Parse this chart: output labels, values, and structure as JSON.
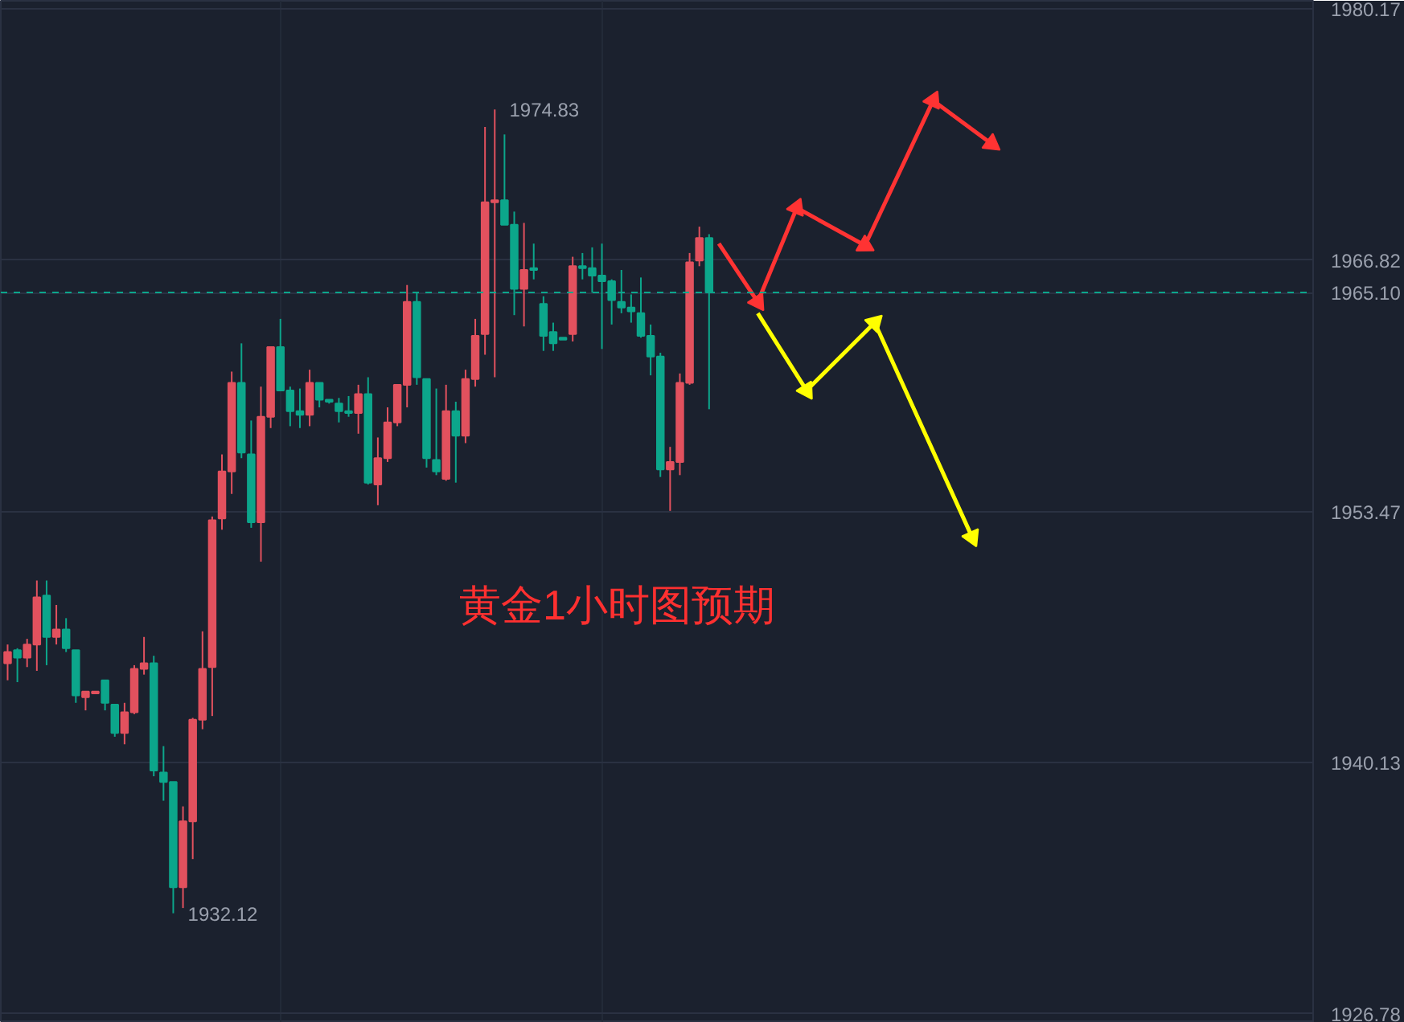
{
  "chart_data": {
    "type": "candlestick",
    "categories": [
      null,
      null,
      null,
      null,
      null,
      null,
      null,
      null,
      null,
      null,
      null,
      null,
      null,
      null,
      null,
      null,
      null,
      null,
      null,
      null,
      null,
      null,
      null,
      null,
      null,
      null,
      null,
      null,
      null,
      null,
      null,
      null,
      null,
      null,
      null,
      null,
      null,
      null,
      null,
      null,
      null,
      null,
      null,
      null,
      null,
      null,
      null,
      null,
      null,
      null,
      null,
      null,
      null,
      null,
      null,
      null,
      null,
      null,
      null,
      null,
      null,
      null,
      null,
      null,
      null,
      null,
      null,
      null,
      null,
      null,
      null,
      null,
      null,
      null,
      null,
      null,
      null,
      null,
      null,
      null,
      null,
      null,
      null,
      null,
      null,
      null,
      null,
      null,
      null,
      null,
      null,
      null,
      null,
      null,
      null,
      null,
      null,
      null,
      null,
      null,
      null,
      null,
      null,
      null,
      null,
      null,
      null,
      null,
      null,
      null,
      null,
      null,
      null,
      null,
      null,
      null,
      null,
      null,
      null,
      null,
      null,
      null,
      null,
      null,
      null,
      null,
      null,
      null,
      null,
      null,
      null,
      null,
      null,
      null,
      null
    ],
    "ohlc": [
      [
        1945.4,
        1946.4,
        1944.5,
        1946.0
      ],
      [
        1946.1,
        1946.2,
        1944.4,
        1945.7
      ],
      [
        1945.7,
        1946.7,
        1945.2,
        1946.4
      ],
      [
        1946.4,
        1949.8,
        1945.0,
        1948.9
      ],
      [
        1949.0,
        1949.8,
        1945.3,
        1946.8
      ],
      [
        1946.8,
        1948.5,
        1946.4,
        1947.2
      ],
      [
        1947.2,
        1947.8,
        1946.0,
        1946.2
      ],
      [
        1946.1,
        1946.1,
        1943.3,
        1943.7
      ],
      [
        1943.6,
        1943.9,
        1942.9,
        1943.9
      ],
      [
        1943.8,
        1943.9,
        1943.8,
        1943.9
      ],
      [
        1944.5,
        1944.5,
        1942.9,
        1943.3
      ],
      [
        1943.2,
        1943.2,
        1941.5,
        1941.7
      ],
      [
        1941.7,
        1943.3,
        1941.1,
        1942.8
      ],
      [
        1942.8,
        1945.3,
        1942.7,
        1945.1
      ],
      [
        1945.1,
        1946.8,
        1944.8,
        1945.4
      ],
      [
        1945.4,
        1945.8,
        1939.4,
        1939.7
      ],
      [
        1939.6,
        1941.0,
        1938.1,
        1939.1
      ],
      [
        1939.1,
        1939.1,
        1932.12,
        1933.5
      ],
      [
        1933.5,
        1937.8,
        1932.4,
        1937.0
      ],
      [
        1937.0,
        1942.5,
        1935.0,
        1942.4
      ],
      [
        1942.4,
        1947.1,
        1941.9,
        1945.1
      ],
      [
        1945.2,
        1953.2,
        1942.6,
        1953.0
      ],
      [
        1953.1,
        1956.5,
        1952.5,
        1955.6
      ],
      [
        1955.6,
        1960.9,
        1954.4,
        1960.3
      ],
      [
        1960.3,
        1962.4,
        1956.3,
        1956.6
      ],
      [
        1956.5,
        1958.3,
        1952.6,
        1952.9
      ],
      [
        1952.9,
        1960.1,
        1950.8,
        1958.5
      ],
      [
        1958.5,
        1962.2,
        1957.9,
        1962.2
      ],
      [
        1962.2,
        1963.7,
        1959.9,
        1959.9
      ],
      [
        1959.9,
        1960.1,
        1958.0,
        1958.8
      ],
      [
        1958.8,
        1960.0,
        1957.9,
        1958.6
      ],
      [
        1958.6,
        1961.0,
        1958.0,
        1960.3
      ],
      [
        1960.3,
        1960.3,
        1959.0,
        1959.4
      ],
      [
        1959.4,
        1959.4,
        1959.2,
        1959.3
      ],
      [
        1959.2,
        1959.5,
        1958.2,
        1958.8
      ],
      [
        1958.8,
        1959.6,
        1958.5,
        1958.7
      ],
      [
        1958.7,
        1960.2,
        1957.6,
        1959.7
      ],
      [
        1959.7,
        1960.6,
        1954.9,
        1955.0
      ],
      [
        1954.9,
        1957.4,
        1953.8,
        1956.3
      ],
      [
        1956.3,
        1959.0,
        1956.1,
        1958.2
      ],
      [
        1958.2,
        1960.2,
        1958.0,
        1960.2
      ],
      [
        1960.2,
        1965.5,
        1959.0,
        1964.6
      ],
      [
        1964.6,
        1965.1,
        1960.2,
        1960.6
      ],
      [
        1960.5,
        1960.5,
        1955.8,
        1956.3
      ],
      [
        1956.2,
        1960.0,
        1955.4,
        1955.6
      ],
      [
        1955.2,
        1960.2,
        1955.1,
        1958.8
      ],
      [
        1958.8,
        1959.3,
        1955.0,
        1957.5
      ],
      [
        1957.5,
        1961.0,
        1957.1,
        1960.5
      ],
      [
        1960.5,
        1963.7,
        1960.1,
        1962.8
      ],
      [
        1962.9,
        1973.9,
        1961.8,
        1969.9
      ],
      [
        1969.9,
        1974.83,
        1960.6,
        1970.0
      ],
      [
        1970.0,
        1973.5,
        1968.7,
        1968.7
      ],
      [
        1968.7,
        1969.4,
        1963.9,
        1965.3
      ],
      [
        1965.3,
        1968.8,
        1963.3,
        1966.3
      ],
      [
        1966.4,
        1967.7,
        1965.8,
        1966.3
      ],
      [
        1964.5,
        1964.9,
        1962.0,
        1962.8
      ],
      [
        1963.0,
        1963.5,
        1962.0,
        1962.4
      ],
      [
        1962.7,
        1962.7,
        1962.6,
        1962.6
      ],
      [
        1962.9,
        1967.0,
        1962.5,
        1966.5
      ],
      [
        1966.5,
        1967.2,
        1965.8,
        1966.4
      ],
      [
        1966.4,
        1967.5,
        1965.1,
        1966.0
      ],
      [
        1966.0,
        1967.7,
        1962.1,
        1965.7
      ],
      [
        1965.7,
        1965.8,
        1963.4,
        1964.7
      ],
      [
        1964.6,
        1966.3,
        1964.0,
        1964.3
      ],
      [
        1964.3,
        1965.0,
        1963.5,
        1964.1
      ],
      [
        1964.0,
        1965.9,
        1962.7,
        1962.8
      ],
      [
        1962.8,
        1963.4,
        1960.7,
        1961.7
      ],
      [
        1961.7,
        1961.9,
        1955.3,
        1955.7
      ],
      [
        1955.7,
        1956.9,
        1953.5,
        1956.1
      ],
      [
        1956.1,
        1960.8,
        1955.4,
        1960.3
      ],
      [
        1960.3,
        1967.2,
        1960.2,
        1966.7
      ],
      [
        1966.8,
        1968.6,
        1966.5,
        1968.0
      ],
      [
        1968.0,
        1968.2,
        1958.9,
        1965.1
      ],
      null,
      null,
      null,
      null,
      null,
      null,
      null,
      null,
      null,
      null,
      null,
      null,
      null,
      null,
      null,
      null,
      null,
      null,
      null,
      null,
      null,
      null,
      null,
      null,
      null,
      null,
      null,
      null,
      null,
      null,
      null,
      null,
      null,
      null,
      null,
      null,
      null,
      null,
      null,
      null,
      null,
      null,
      null,
      null,
      null,
      null,
      null,
      null,
      null,
      null,
      null,
      null,
      null,
      null,
      null,
      null,
      null,
      null,
      null,
      null,
      null,
      null
    ],
    "colors": [
      "#e2515e",
      "#0ca68b",
      "#e2515e",
      "#e2515e",
      "#0ca68b",
      "#e2515e",
      "#0ca68b",
      "#0ca68b",
      "#e2515e",
      "#e2515e",
      "#0ca68b",
      "#0ca68b",
      "#e2515e",
      "#e2515e",
      "#e2515e",
      "#0ca68b",
      "#0ca68b",
      "#0ca68b",
      "#e2515e",
      "#e2515e",
      "#e2515e",
      "#e2515e",
      "#e2515e",
      "#e2515e",
      "#0ca68b",
      "#0ca68b",
      "#e2515e",
      "#e2515e",
      "#0ca68b",
      "#0ca68b",
      "#0ca68b",
      "#e2515e",
      "#0ca68b",
      "#0ca68b",
      "#0ca68b",
      "#0ca68b",
      "#e2515e",
      "#0ca68b",
      "#e2515e",
      "#e2515e",
      "#e2515e",
      "#e2515e",
      "#0ca68b",
      "#0ca68b",
      "#0ca68b",
      "#e2515e",
      "#0ca68b",
      "#e2515e",
      "#e2515e",
      "#e2515e",
      "#e2515e",
      "#0ca68b",
      "#0ca68b",
      "#e2515e",
      "#0ca68b",
      "#0ca68b",
      "#0ca68b",
      "#0ca68b",
      "#e2515e",
      "#0ca68b",
      "#0ca68b",
      "#0ca68b",
      "#0ca68b",
      "#0ca68b",
      "#0ca68b",
      "#0ca68b",
      "#0ca68b",
      "#0ca68b",
      "#e2515e",
      "#e2515e",
      "#e2515e",
      "#e2515e",
      "#0ca68b",
      null,
      null,
      null,
      null,
      null,
      null,
      null,
      null,
      null,
      null,
      null,
      null,
      null,
      null,
      null,
      null,
      null,
      null,
      null,
      null,
      null,
      null,
      null,
      null,
      null,
      null,
      null,
      null,
      null,
      null,
      null,
      null,
      null,
      null,
      null,
      null,
      null,
      null,
      null,
      null,
      null,
      null,
      null,
      null,
      null,
      null,
      null,
      null,
      null,
      null,
      null,
      null,
      null,
      null,
      null,
      null,
      null,
      null,
      null,
      null,
      null,
      null
    ],
    "series": [
      {
        "type": "line",
        "color": "#ff3333",
        "marker": "triangle",
        "values": [
          null,
          null,
          null,
          null,
          null,
          null,
          null,
          null,
          null,
          null,
          null,
          null,
          null,
          null,
          null,
          null,
          null,
          null,
          null,
          null,
          null,
          null,
          null,
          null,
          null,
          null,
          null,
          null,
          null,
          null,
          null,
          null,
          null,
          null,
          null,
          null,
          null,
          null,
          null,
          null,
          null,
          null,
          null,
          null,
          null,
          null,
          null,
          null,
          null,
          null,
          null,
          null,
          null,
          null,
          null,
          null,
          null,
          null,
          null,
          null,
          null,
          null,
          null,
          null,
          null,
          null,
          null,
          null,
          null,
          null,
          null,
          null,
          null,
          1967.7,
          null,
          null,
          null,
          1964.6,
          null,
          null,
          null,
          1969.6,
          null,
          null,
          null,
          null,
          null,
          null,
          1967.6,
          null,
          null,
          null,
          null,
          null,
          null,
          1975.3,
          null,
          null,
          null,
          null,
          null,
          1973.0,
          null,
          null,
          null,
          null,
          null,
          null,
          null,
          null,
          null,
          null,
          null,
          null,
          null,
          null,
          null,
          null,
          null,
          null,
          null,
          null,
          null,
          null,
          null,
          null,
          null,
          null,
          null,
          null,
          null,
          null,
          null,
          null,
          null
        ]
      },
      {
        "type": "line",
        "color": "#ffff00",
        "marker": "triangle",
        "values": [
          null,
          null,
          null,
          null,
          null,
          null,
          null,
          null,
          null,
          null,
          null,
          null,
          null,
          null,
          null,
          null,
          null,
          null,
          null,
          null,
          null,
          null,
          null,
          null,
          null,
          null,
          null,
          null,
          null,
          null,
          null,
          null,
          null,
          null,
          null,
          null,
          null,
          null,
          null,
          null,
          null,
          null,
          null,
          null,
          null,
          null,
          null,
          null,
          null,
          null,
          null,
          null,
          null,
          null,
          null,
          null,
          null,
          null,
          null,
          null,
          null,
          null,
          null,
          null,
          null,
          null,
          null,
          null,
          null,
          null,
          null,
          null,
          null,
          null,
          null,
          null,
          null,
          1964.0,
          null,
          null,
          null,
          null,
          1959.9,
          null,
          null,
          null,
          null,
          null,
          null,
          1963.5,
          null,
          null,
          null,
          null,
          null,
          null,
          null,
          null,
          null,
          1952.1,
          null,
          null,
          null,
          null,
          null,
          null,
          null,
          null,
          null,
          null,
          null,
          null,
          null,
          null,
          null,
          null,
          null,
          null,
          null,
          null,
          null,
          null,
          null,
          null,
          null,
          null,
          null,
          null,
          null,
          null,
          null,
          null,
          null,
          null,
          null
        ]
      }
    ],
    "ylim": [
      1926.3,
      1980.6
    ],
    "yticks": [
      1926.78,
      1940.13,
      1953.47,
      1966.82,
      1980.17
    ],
    "ref_lines": [
      {
        "axis": "y",
        "value": 1965.1,
        "label": "1965.10",
        "color": "#0ca68b",
        "line_style": "dashed"
      }
    ],
    "annotations": [
      "黄金1小时图预期",
      "1974.83",
      "1932.12"
    ],
    "grid": true,
    "tick_labels": "y"
  }
}
